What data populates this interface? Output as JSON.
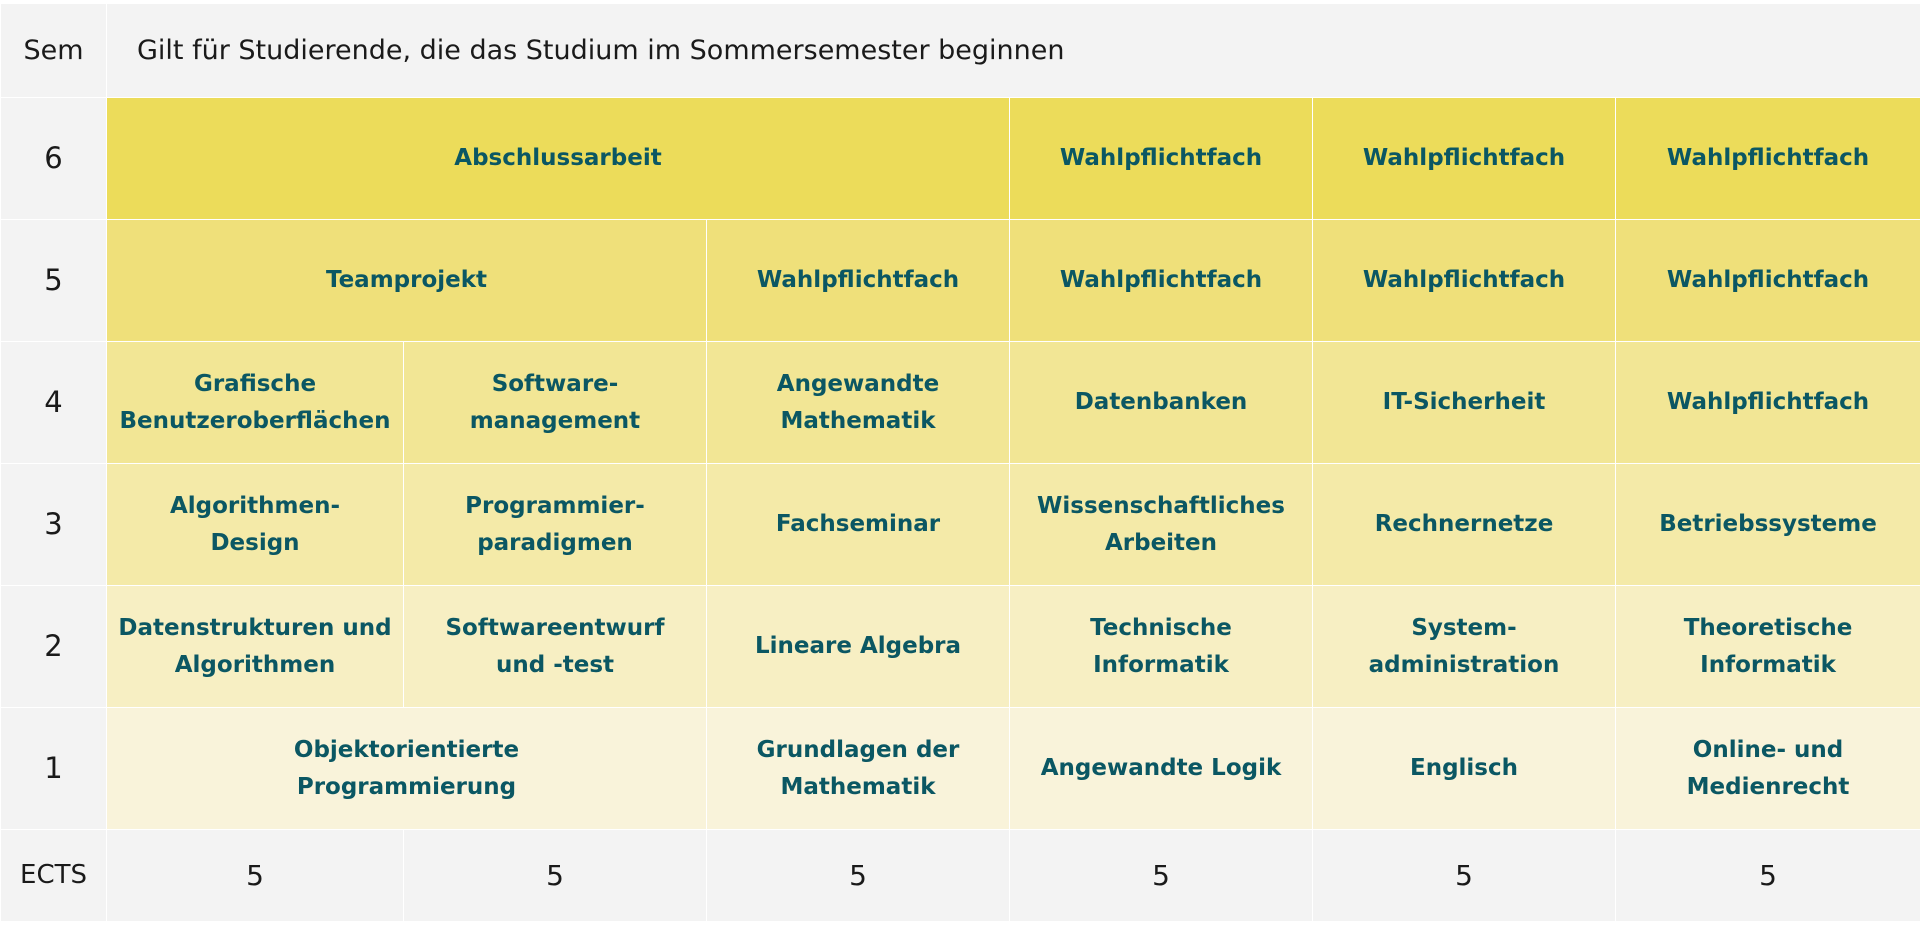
{
  "header": {
    "sem_label": "Sem",
    "title": "Gilt für Studierende, die das Studium im Sommersemester beginnen"
  },
  "colors": {
    "sem6": "#ecdc5a",
    "sem5": "#efe07a",
    "sem4": "#f2e695",
    "sem3": "#f4eaa8",
    "sem2": "#f7efc3",
    "sem1": "#f9f3da",
    "header_bg": "#f3f3f3",
    "module_text": "#0b5763"
  },
  "rows": [
    {
      "sem": "6",
      "color": "#ecdc5a",
      "cells": [
        {
          "label": "Abschlussarbeit",
          "span": 3
        },
        {
          "label": "Wahlpflichtfach",
          "span": 1
        },
        {
          "label": "Wahlpflichtfach",
          "span": 1
        },
        {
          "label": "Wahlpflichtfach",
          "span": 1
        }
      ]
    },
    {
      "sem": "5",
      "color": "#efe07a",
      "cells": [
        {
          "label": "Teamprojekt",
          "span": 2
        },
        {
          "label": "Wahlpflichtfach",
          "span": 1
        },
        {
          "label": "Wahlpflichtfach",
          "span": 1
        },
        {
          "label": "Wahlpflichtfach",
          "span": 1
        },
        {
          "label": "Wahlpflichtfach",
          "span": 1
        }
      ]
    },
    {
      "sem": "4",
      "color": "#f2e695",
      "cells": [
        {
          "label": "Grafische\nBenutzeroberflächen",
          "span": 1
        },
        {
          "label": "Software-\nmanagement",
          "span": 1
        },
        {
          "label": "Angewandte\nMathematik",
          "span": 1
        },
        {
          "label": "Datenbanken",
          "span": 1
        },
        {
          "label": "IT-Sicherheit",
          "span": 1
        },
        {
          "label": "Wahlpflichtfach",
          "span": 1
        }
      ]
    },
    {
      "sem": "3",
      "color": "#f4eaa8",
      "cells": [
        {
          "label": "Algorithmen-\nDesign",
          "span": 1
        },
        {
          "label": "Programmier-\nparadigmen",
          "span": 1
        },
        {
          "label": "Fachseminar",
          "span": 1
        },
        {
          "label": "Wissenschaftliches\nArbeiten",
          "span": 1
        },
        {
          "label": "Rechnernetze",
          "span": 1
        },
        {
          "label": "Betriebssysteme",
          "span": 1
        }
      ]
    },
    {
      "sem": "2",
      "color": "#f7efc3",
      "cells": [
        {
          "label": "Datenstrukturen und\nAlgorithmen",
          "span": 1
        },
        {
          "label": "Softwareentwurf\nund -test",
          "span": 1
        },
        {
          "label": "Lineare Algebra",
          "span": 1
        },
        {
          "label": "Technische\nInformatik",
          "span": 1
        },
        {
          "label": "System-\nadministration",
          "span": 1
        },
        {
          "label": "Theoretische\nInformatik",
          "span": 1
        }
      ]
    },
    {
      "sem": "1",
      "color": "#f9f3da",
      "cells": [
        {
          "label": "Objektorientierte\nProgrammierung",
          "span": 2
        },
        {
          "label": "Grundlagen der\nMathematik",
          "span": 1
        },
        {
          "label": "Angewandte Logik",
          "span": 1
        },
        {
          "label": "Englisch",
          "span": 1
        },
        {
          "label": "Online- und\nMedienrecht",
          "span": 1
        }
      ]
    }
  ],
  "ects": {
    "label": "ECTS",
    "values": [
      "5",
      "5",
      "5",
      "5",
      "5",
      "5"
    ]
  }
}
